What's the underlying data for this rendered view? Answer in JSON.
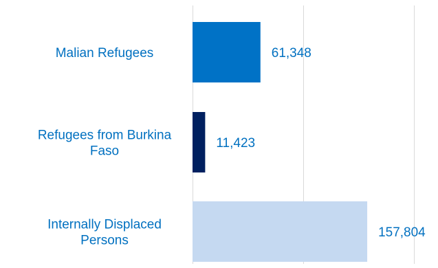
{
  "chart_data": {
    "type": "bar",
    "orientation": "horizontal",
    "categories": [
      [
        "Malian Refugees"
      ],
      [
        "Refugees from Burkina",
        "Faso"
      ],
      [
        "Internally Displaced",
        "Persons"
      ]
    ],
    "values": [
      61348,
      11423,
      157804
    ],
    "value_labels": [
      "61,348",
      "11,423",
      "157,804"
    ],
    "bar_colors": [
      "#0072C6",
      "#002060",
      "#C5D9F1"
    ],
    "label_color": "#0070C0",
    "gridline_color": "#D9D9D9",
    "xlim": [
      0,
      200000
    ],
    "gridlines": [
      0,
      100000,
      200000
    ],
    "grid": true,
    "legend": "none",
    "title": "",
    "xlabel": "",
    "ylabel": ""
  }
}
